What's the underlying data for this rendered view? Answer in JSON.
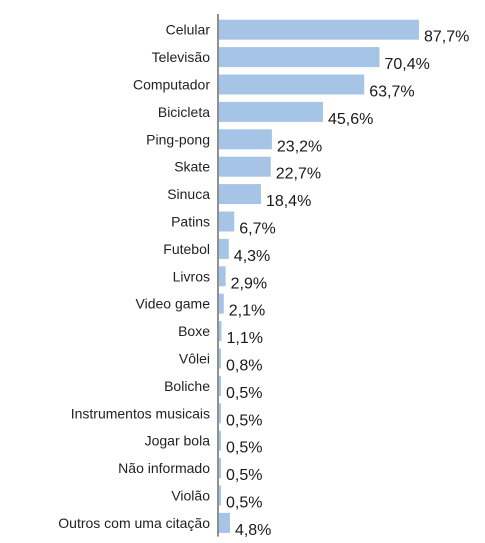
{
  "colors": {
    "bar": "#a6c4e6",
    "axis": "#222222",
    "text": "#222222"
  },
  "chart_data": {
    "type": "bar",
    "orientation": "horizontal",
    "unit": "%",
    "xlim": [
      0,
      100
    ],
    "grid": false,
    "legend": "none",
    "categories": [
      "Celular",
      "Televisão",
      "Computador",
      "Bicicleta",
      "Ping-pong",
      "Skate",
      "Sinuca",
      "Patins",
      "Futebol",
      "Livros",
      "Video game",
      "Boxe",
      "Vôlei",
      "Boliche",
      "Instrumentos musicais",
      "Jogar bola",
      "Não informado",
      "Violão",
      "Outros com uma citação"
    ],
    "values": [
      87.7,
      70.4,
      63.7,
      45.6,
      23.2,
      22.7,
      18.4,
      6.7,
      4.3,
      2.9,
      2.1,
      1.1,
      0.8,
      0.5,
      0.5,
      0.5,
      0.5,
      0.5,
      4.8
    ],
    "value_labels": [
      "87,7%",
      "70,4%",
      "63,7%",
      "45,6%",
      "23,2%",
      "22,7%",
      "18,4%",
      "6,7%",
      "4,3%",
      "2,9%",
      "2,1%",
      "1,1%",
      "0,8%",
      "0,5%",
      "0,5%",
      "0,5%",
      "0,5%",
      "0,5%",
      "4,8%"
    ]
  }
}
